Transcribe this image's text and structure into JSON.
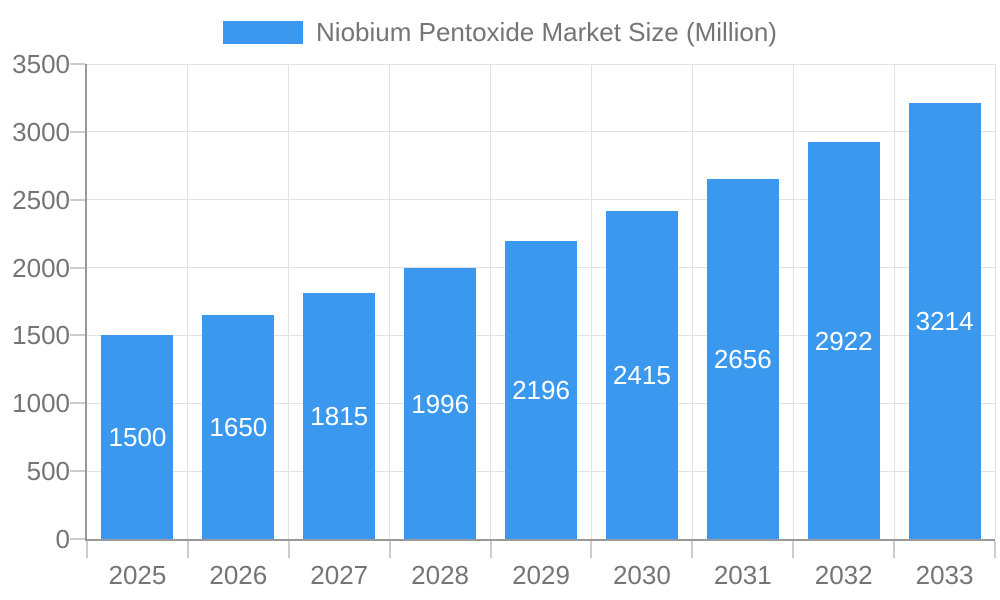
{
  "legend": {
    "label": "Niobium Pentoxide Market Size (Million)",
    "swatch_color": "#3A99EE"
  },
  "chart_data": {
    "type": "bar",
    "title": "Niobium Pentoxide Market Size (Million)",
    "categories": [
      "2025",
      "2026",
      "2027",
      "2028",
      "2029",
      "2030",
      "2031",
      "2032",
      "2033"
    ],
    "values": [
      1500,
      1650,
      1815,
      1996,
      2196,
      2415,
      2656,
      2922,
      3214
    ],
    "series": [
      {
        "name": "Niobium Pentoxide Market Size (Million)",
        "values": [
          1500,
          1650,
          1815,
          1996,
          2196,
          2415,
          2656,
          2922,
          3214
        ]
      }
    ],
    "xlabel": "",
    "ylabel": "",
    "ylim": [
      0,
      3500
    ],
    "yticks": [
      0,
      500,
      1000,
      1500,
      2000,
      2500,
      3000,
      3500
    ],
    "grid": true,
    "legend_position": "top",
    "value_labels": "inside-center",
    "colors": {
      "bar": "#3A99EE",
      "bar_label": "#FFFFFF",
      "axis_line": "#999999",
      "gridline": "#E2E2E2",
      "tick": "#CCCCCC",
      "axis_text": "#757575",
      "background": "#FFFFFF"
    }
  }
}
